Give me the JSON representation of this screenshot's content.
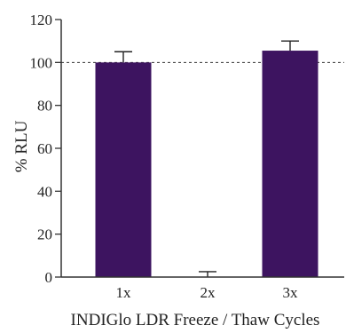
{
  "chart_data": {
    "type": "bar",
    "categories": [
      "1x",
      "2x",
      "3x"
    ],
    "values": [
      100,
      0,
      105.5
    ],
    "errors": [
      5,
      2.5,
      4.5
    ],
    "reference_line": 100,
    "xlabel": "INDIGlo LDR Freeze / Thaw Cycles",
    "ylabel": "% RLU",
    "ylim": [
      0,
      120
    ],
    "yticks": [
      0,
      20,
      40,
      60,
      80,
      100,
      120
    ],
    "bar_color": "#3d1460",
    "grid": false
  }
}
